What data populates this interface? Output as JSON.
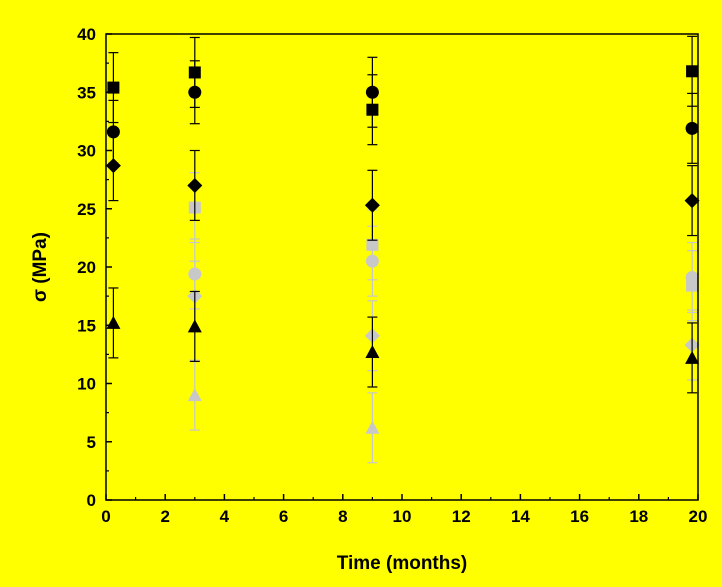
{
  "chart_data": {
    "type": "scatter",
    "title": "",
    "xlabel": "Time (months)",
    "ylabel": "σ (MPa)",
    "xlim": [
      0,
      20
    ],
    "ylim": [
      0,
      40
    ],
    "xticks": [
      "0",
      "2",
      "4",
      "6",
      "8",
      "10",
      "12",
      "14",
      "16",
      "18",
      "20"
    ],
    "yticks": [
      "0",
      "5",
      "10",
      "15",
      "20",
      "25",
      "30",
      "35",
      "40"
    ],
    "grid": false,
    "legend": "none",
    "background": "#ffff00",
    "series": [
      {
        "marker": "square",
        "color": "#000000",
        "points": [
          {
            "x": 0.25,
            "y": 35.4,
            "err": 3.0
          },
          {
            "x": 3.0,
            "y": 36.7,
            "err": 3.0
          },
          {
            "x": 9.0,
            "y": 33.5,
            "err": 3.0
          },
          {
            "x": 19.8,
            "y": 36.8,
            "err": 3.0
          }
        ]
      },
      {
        "marker": "circle",
        "color": "#000000",
        "points": [
          {
            "x": 0.25,
            "y": 31.6,
            "err": 2.7
          },
          {
            "x": 3.0,
            "y": 35.0,
            "err": 2.7
          },
          {
            "x": 9.0,
            "y": 35.0,
            "err": 3.0
          },
          {
            "x": 19.8,
            "y": 31.9,
            "err": 3.0
          }
        ]
      },
      {
        "marker": "diamond",
        "color": "#000000",
        "points": [
          {
            "x": 0.25,
            "y": 28.7,
            "err": 3.0
          },
          {
            "x": 3.0,
            "y": 27.0,
            "err": 3.0
          },
          {
            "x": 9.0,
            "y": 25.3,
            "err": 3.0
          },
          {
            "x": 19.8,
            "y": 25.7,
            "err": 3.0
          }
        ]
      },
      {
        "marker": "triangle",
        "color": "#000000",
        "points": [
          {
            "x": 0.25,
            "y": 15.2,
            "err": 3.0
          },
          {
            "x": 3.0,
            "y": 14.9,
            "err": 3.0
          },
          {
            "x": 9.0,
            "y": 12.7,
            "err": 3.0
          },
          {
            "x": 19.8,
            "y": 12.2,
            "err": 3.0
          }
        ]
      },
      {
        "marker": "square",
        "color": "#c8c8c8",
        "points": [
          {
            "x": 3.0,
            "y": 25.1,
            "err": 3.0
          },
          {
            "x": 9.0,
            "y": 21.9,
            "err": 3.0
          },
          {
            "x": 19.8,
            "y": 18.4,
            "err": 3.0
          }
        ]
      },
      {
        "marker": "circle",
        "color": "#c8c8c8",
        "points": [
          {
            "x": 3.0,
            "y": 19.4,
            "err": 3.0
          },
          {
            "x": 9.0,
            "y": 20.5,
            "err": 3.0
          },
          {
            "x": 19.8,
            "y": 19.1,
            "err": 3.0
          }
        ]
      },
      {
        "marker": "diamond",
        "color": "#c8c8c8",
        "points": [
          {
            "x": 3.0,
            "y": 17.5,
            "err": 3.0
          },
          {
            "x": 9.0,
            "y": 14.1,
            "err": 3.0
          },
          {
            "x": 19.8,
            "y": 13.3,
            "err": 3.0
          }
        ]
      },
      {
        "marker": "triangle",
        "color": "#c8c8c8",
        "points": [
          {
            "x": 3.0,
            "y": 9.0,
            "err": 3.0
          },
          {
            "x": 9.0,
            "y": 6.2,
            "err": 3.0
          }
        ]
      }
    ]
  }
}
